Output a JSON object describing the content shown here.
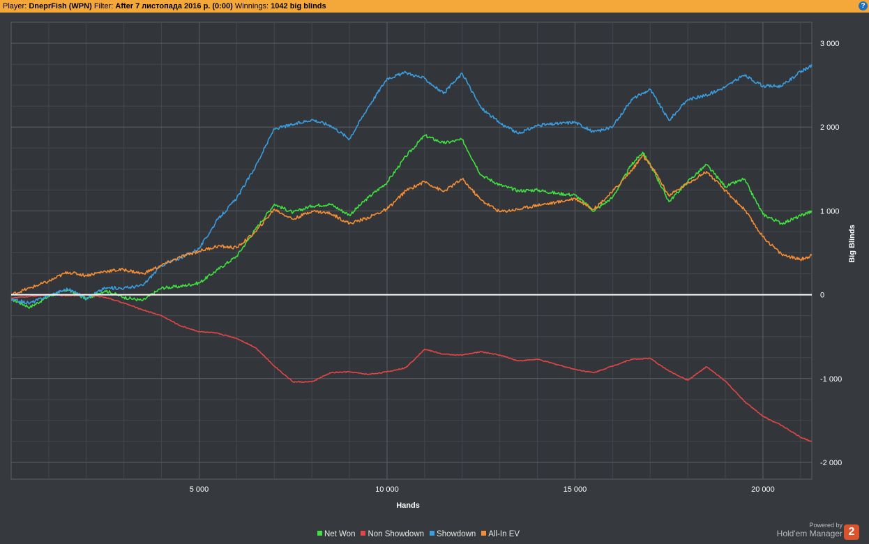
{
  "header": {
    "player_label": "Player:",
    "player": "DneprFish (WPN)",
    "filter_label": "Filter:",
    "filter": "After 7 листопада 2016 р. (0:00)",
    "winnings_label": "Winnings:",
    "winnings": "1042 big blinds",
    "help_icon": "help-icon"
  },
  "branding": {
    "powered_by": "Powered by",
    "name": "Hold'em Manager",
    "logo": "2"
  },
  "chart_data": {
    "type": "line",
    "title": "",
    "xlabel": "Hands",
    "ylabel": "Big Blinds",
    "xlim": [
      0,
      21300
    ],
    "ylim": [
      -2200,
      3250
    ],
    "x_ticks": [
      {
        "value": 5000,
        "label": "5 000"
      },
      {
        "value": 10000,
        "label": "10 000"
      },
      {
        "value": 15000,
        "label": "15 000"
      },
      {
        "value": 20000,
        "label": "20 000"
      }
    ],
    "y_ticks": [
      {
        "value": 3000,
        "label": "3 000"
      },
      {
        "value": 2000,
        "label": "2 000"
      },
      {
        "value": 1000,
        "label": "1 000"
      },
      {
        "value": 0,
        "label": "0"
      },
      {
        "value": -1000,
        "label": "-1 000"
      },
      {
        "value": -2000,
        "label": "-2 000"
      }
    ],
    "grid": true,
    "legend_position": "bottom",
    "series": [
      {
        "name": "Net Won",
        "color": "#3fe03f",
        "points": [
          [
            0,
            -50
          ],
          [
            500,
            -150
          ],
          [
            1000,
            -20
          ],
          [
            1500,
            60
          ],
          [
            2000,
            -50
          ],
          [
            2500,
            50
          ],
          [
            3000,
            -30
          ],
          [
            3500,
            -70
          ],
          [
            4000,
            80
          ],
          [
            4500,
            100
          ],
          [
            5000,
            140
          ],
          [
            5500,
            300
          ],
          [
            6000,
            460
          ],
          [
            6500,
            780
          ],
          [
            7000,
            1080
          ],
          [
            7500,
            980
          ],
          [
            8000,
            1060
          ],
          [
            8500,
            1080
          ],
          [
            9000,
            950
          ],
          [
            9500,
            1160
          ],
          [
            10000,
            1340
          ],
          [
            10500,
            1650
          ],
          [
            11000,
            1900
          ],
          [
            11500,
            1810
          ],
          [
            12000,
            1850
          ],
          [
            12500,
            1430
          ],
          [
            13000,
            1310
          ],
          [
            13500,
            1240
          ],
          [
            14000,
            1250
          ],
          [
            14500,
            1210
          ],
          [
            15000,
            1190
          ],
          [
            15500,
            1000
          ],
          [
            16000,
            1160
          ],
          [
            16500,
            1550
          ],
          [
            16800,
            1700
          ],
          [
            17100,
            1470
          ],
          [
            17500,
            1110
          ],
          [
            18000,
            1350
          ],
          [
            18500,
            1550
          ],
          [
            19000,
            1290
          ],
          [
            19500,
            1380
          ],
          [
            20000,
            960
          ],
          [
            20500,
            850
          ],
          [
            21000,
            940
          ],
          [
            21300,
            1000
          ]
        ]
      },
      {
        "name": "Non Showdown",
        "color": "#e24646",
        "points": [
          [
            0,
            -40
          ],
          [
            500,
            -20
          ],
          [
            1000,
            0
          ],
          [
            1500,
            -10
          ],
          [
            2000,
            0
          ],
          [
            2500,
            -30
          ],
          [
            3000,
            -100
          ],
          [
            3500,
            -180
          ],
          [
            4000,
            -250
          ],
          [
            4500,
            -370
          ],
          [
            5000,
            -440
          ],
          [
            5500,
            -460
          ],
          [
            6000,
            -520
          ],
          [
            6500,
            -630
          ],
          [
            7000,
            -850
          ],
          [
            7500,
            -1040
          ],
          [
            8000,
            -1040
          ],
          [
            8500,
            -930
          ],
          [
            9000,
            -920
          ],
          [
            9500,
            -950
          ],
          [
            10000,
            -920
          ],
          [
            10500,
            -870
          ],
          [
            11000,
            -650
          ],
          [
            11500,
            -710
          ],
          [
            12000,
            -720
          ],
          [
            12500,
            -680
          ],
          [
            13000,
            -720
          ],
          [
            13500,
            -790
          ],
          [
            14000,
            -770
          ],
          [
            14500,
            -830
          ],
          [
            15000,
            -890
          ],
          [
            15500,
            -930
          ],
          [
            16000,
            -850
          ],
          [
            16500,
            -770
          ],
          [
            17000,
            -760
          ],
          [
            17500,
            -910
          ],
          [
            18000,
            -1020
          ],
          [
            18500,
            -860
          ],
          [
            19000,
            -1030
          ],
          [
            19500,
            -1270
          ],
          [
            20000,
            -1450
          ],
          [
            20500,
            -1560
          ],
          [
            21000,
            -1700
          ],
          [
            21300,
            -1750
          ]
        ]
      },
      {
        "name": "Showdown",
        "color": "#3a9de0",
        "points": [
          [
            0,
            -60
          ],
          [
            500,
            -100
          ],
          [
            1000,
            -10
          ],
          [
            1500,
            70
          ],
          [
            2000,
            -40
          ],
          [
            2500,
            80
          ],
          [
            3000,
            80
          ],
          [
            3500,
            110
          ],
          [
            4000,
            350
          ],
          [
            4500,
            440
          ],
          [
            5000,
            550
          ],
          [
            5500,
            900
          ],
          [
            6000,
            1150
          ],
          [
            6500,
            1530
          ],
          [
            7000,
            1980
          ],
          [
            7500,
            2030
          ],
          [
            8000,
            2090
          ],
          [
            8500,
            2020
          ],
          [
            9000,
            1860
          ],
          [
            9500,
            2240
          ],
          [
            10000,
            2580
          ],
          [
            10500,
            2650
          ],
          [
            11000,
            2580
          ],
          [
            11500,
            2400
          ],
          [
            12000,
            2640
          ],
          [
            12500,
            2230
          ],
          [
            13000,
            2050
          ],
          [
            13500,
            1920
          ],
          [
            14000,
            2020
          ],
          [
            14500,
            2040
          ],
          [
            15000,
            2060
          ],
          [
            15500,
            1940
          ],
          [
            16000,
            2000
          ],
          [
            16500,
            2330
          ],
          [
            17000,
            2450
          ],
          [
            17500,
            2080
          ],
          [
            18000,
            2330
          ],
          [
            18500,
            2380
          ],
          [
            19000,
            2480
          ],
          [
            19500,
            2620
          ],
          [
            20000,
            2490
          ],
          [
            20500,
            2490
          ],
          [
            21000,
            2660
          ],
          [
            21300,
            2730
          ]
        ]
      },
      {
        "name": "All-In EV",
        "color": "#f58e34",
        "points": [
          [
            0,
            0
          ],
          [
            500,
            80
          ],
          [
            1000,
            160
          ],
          [
            1500,
            270
          ],
          [
            2000,
            230
          ],
          [
            2500,
            280
          ],
          [
            3000,
            300
          ],
          [
            3500,
            250
          ],
          [
            4000,
            350
          ],
          [
            4500,
            450
          ],
          [
            5000,
            520
          ],
          [
            5500,
            580
          ],
          [
            6000,
            560
          ],
          [
            6500,
            750
          ],
          [
            7000,
            1020
          ],
          [
            7500,
            900
          ],
          [
            8000,
            1000
          ],
          [
            8500,
            970
          ],
          [
            9000,
            850
          ],
          [
            9500,
            920
          ],
          [
            10000,
            1020
          ],
          [
            10500,
            1240
          ],
          [
            11000,
            1350
          ],
          [
            11500,
            1230
          ],
          [
            12000,
            1380
          ],
          [
            12500,
            1130
          ],
          [
            13000,
            990
          ],
          [
            13500,
            1020
          ],
          [
            14000,
            1070
          ],
          [
            14500,
            1100
          ],
          [
            15000,
            1150
          ],
          [
            15500,
            1020
          ],
          [
            16000,
            1230
          ],
          [
            16500,
            1480
          ],
          [
            16800,
            1660
          ],
          [
            17100,
            1490
          ],
          [
            17500,
            1180
          ],
          [
            18000,
            1330
          ],
          [
            18500,
            1470
          ],
          [
            19000,
            1240
          ],
          [
            19500,
            1020
          ],
          [
            20000,
            690
          ],
          [
            20500,
            480
          ],
          [
            21000,
            420
          ],
          [
            21300,
            470
          ]
        ]
      }
    ]
  }
}
